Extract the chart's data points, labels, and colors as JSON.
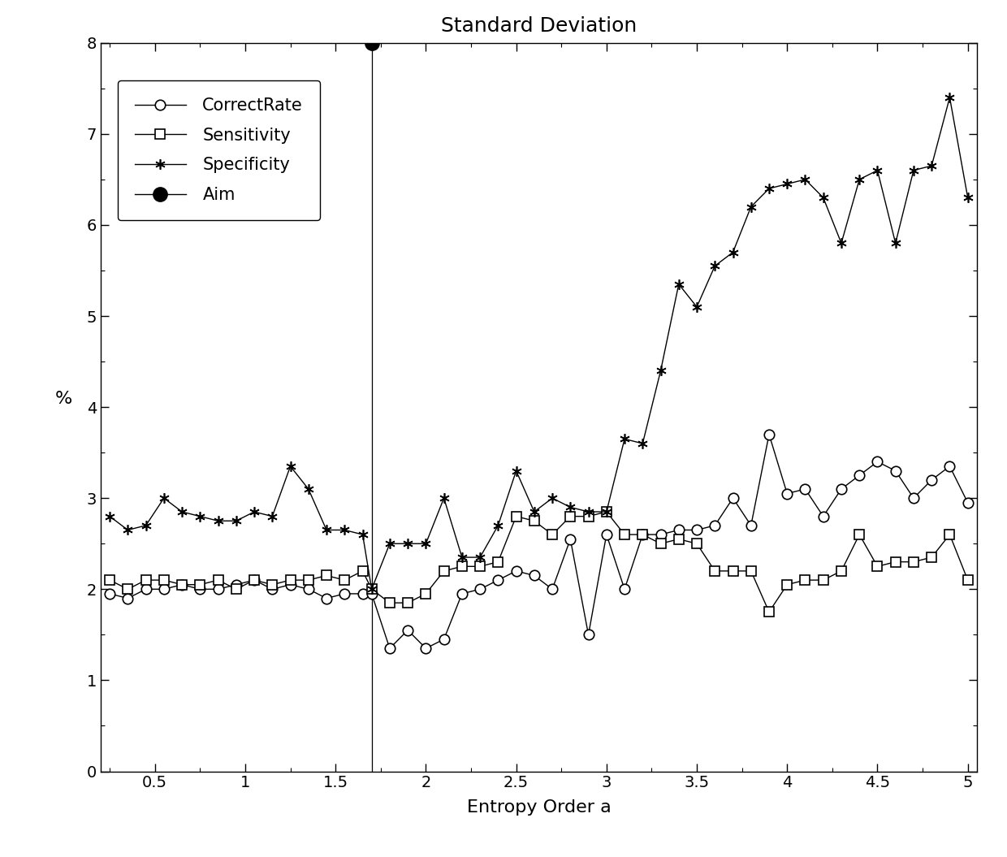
{
  "title": "Standard Deviation",
  "xlabel": "Entropy Order a",
  "ylabel": "%",
  "xlim": [
    0.2,
    5.05
  ],
  "ylim": [
    0,
    8
  ],
  "yticks": [
    0,
    1,
    2,
    3,
    4,
    5,
    6,
    7,
    8
  ],
  "xticks": [
    0.5,
    1.0,
    1.5,
    2.0,
    2.5,
    3.0,
    3.5,
    4.0,
    4.5,
    5.0
  ],
  "xticklabels": [
    "0.5",
    "1",
    "1.5",
    "2",
    "2.5",
    "3",
    "3.5",
    "4",
    "4.5",
    "5"
  ],
  "vline_x": 1.7,
  "aim_x": 1.7,
  "aim_y": 8,
  "x_vals": [
    0.25,
    0.35,
    0.45,
    0.55,
    0.65,
    0.75,
    0.85,
    0.95,
    1.05,
    1.15,
    1.25,
    1.35,
    1.45,
    1.55,
    1.65,
    1.7,
    1.8,
    1.9,
    2.0,
    2.1,
    2.2,
    2.3,
    2.4,
    2.5,
    2.6,
    2.7,
    2.8,
    2.9,
    3.0,
    3.1,
    3.2,
    3.3,
    3.4,
    3.5,
    3.6,
    3.7,
    3.8,
    3.9,
    4.0,
    4.1,
    4.2,
    4.3,
    4.4,
    4.5,
    4.6,
    4.7,
    4.8,
    4.9,
    5.0
  ],
  "y_correct": [
    1.95,
    1.9,
    2.0,
    2.0,
    2.05,
    2.0,
    2.0,
    2.05,
    2.1,
    2.0,
    2.05,
    2.0,
    1.9,
    1.95,
    1.95,
    1.95,
    1.35,
    1.55,
    1.35,
    1.45,
    1.95,
    2.0,
    2.1,
    2.2,
    2.15,
    2.0,
    2.55,
    1.5,
    2.6,
    2.0,
    2.6,
    2.6,
    2.65,
    2.65,
    2.7,
    3.0,
    2.7,
    3.7,
    3.05,
    3.1,
    2.8,
    3.1,
    3.25,
    3.4,
    3.3,
    3.0,
    3.2,
    3.35,
    2.95
  ],
  "y_sensitivity": [
    2.1,
    2.0,
    2.1,
    2.1,
    2.05,
    2.05,
    2.1,
    2.0,
    2.1,
    2.05,
    2.1,
    2.1,
    2.15,
    2.1,
    2.2,
    2.0,
    1.85,
    1.85,
    1.95,
    2.2,
    2.25,
    2.25,
    2.3,
    2.8,
    2.75,
    2.6,
    2.8,
    2.8,
    2.85,
    2.6,
    2.6,
    2.5,
    2.55,
    2.5,
    2.2,
    2.2,
    2.2,
    1.75,
    2.05,
    2.1,
    2.1,
    2.2,
    2.6,
    2.25,
    2.3,
    2.3,
    2.35,
    2.6,
    2.1
  ],
  "y_specificity": [
    2.8,
    2.65,
    2.7,
    3.0,
    2.85,
    2.8,
    2.75,
    2.75,
    2.85,
    2.8,
    3.35,
    3.1,
    2.65,
    2.65,
    2.6,
    2.0,
    2.5,
    2.5,
    2.5,
    3.0,
    2.35,
    2.35,
    2.7,
    3.3,
    2.85,
    3.0,
    2.9,
    2.85,
    2.85,
    3.65,
    3.6,
    4.4,
    5.35,
    5.1,
    5.55,
    5.7,
    6.2,
    6.4,
    6.45,
    6.5,
    6.3,
    5.8,
    6.5,
    6.6,
    5.8,
    6.6,
    6.65,
    7.4,
    6.3
  ],
  "line_color": "#000000",
  "background_color": "#ffffff",
  "title_fontsize": 18,
  "label_fontsize": 16,
  "tick_fontsize": 14,
  "legend_fontsize": 15
}
